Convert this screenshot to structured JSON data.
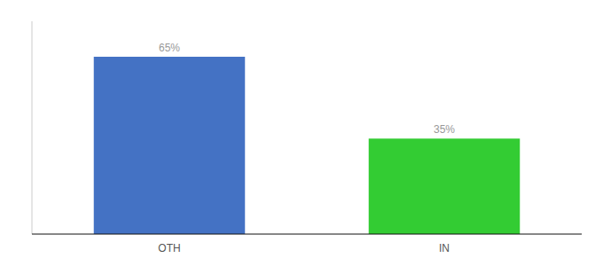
{
  "chart_data": {
    "type": "bar",
    "categories": [
      "OTH",
      "IN"
    ],
    "values": [
      65,
      35
    ],
    "value_labels": [
      "65%",
      "35%"
    ],
    "colors": [
      "#4472c4",
      "#33cc33"
    ],
    "ylim": [
      0,
      78
    ],
    "data_labels": true,
    "tick_labels": "x",
    "grid": false
  }
}
